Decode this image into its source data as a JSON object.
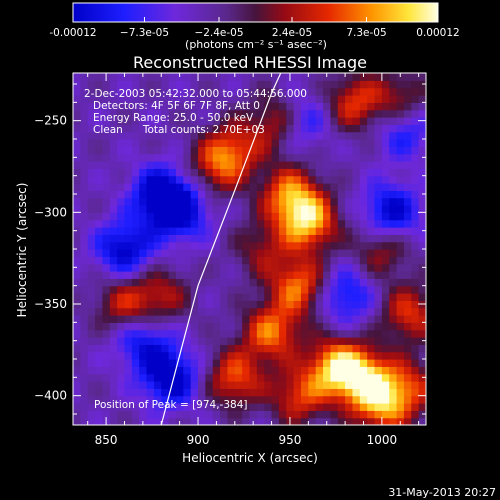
{
  "chart_data": {
    "type": "heatmap",
    "title": "Reconstructed RHESSI Image",
    "xlabel": "Heliocentric X (arcsec)",
    "ylabel": "Heliocentric Y (arcsec)",
    "xlim": [
      832,
      1024
    ],
    "ylim": [
      -416,
      -224
    ],
    "x_ticks": [
      850,
      900,
      950,
      1000
    ],
    "y_ticks": [
      -250,
      -300,
      -350,
      -400
    ],
    "colorbar": {
      "range": [
        -0.00012,
        0.00012
      ],
      "tick_values": [
        -0.00012,
        -7.3e-05,
        -2.4e-05,
        2.4e-05,
        7.3e-05,
        0.00012
      ],
      "tick_labels": [
        "-0.00012",
        "−7.3e-05",
        "−2.4e-05",
        "2.4e-05",
        "7.3e-05",
        "0.00012"
      ],
      "units_label": "(photons cm⁻² s⁻¹ asec⁻²)"
    },
    "annotations": {
      "time_range": "2-Dec-2003 05:42:32.000 to 05:44:56.000",
      "detectors": "Detectors: 4F 5F 6F 7F 8F, Att 0",
      "energy_range": "Energy Range: 25.0 - 50.0 keV",
      "method_counts": "Clean      Total counts: 2.70E+03",
      "peak": "Position of Peak = [974,-384]"
    },
    "limb_curve": [
      [
        880,
        -416
      ],
      [
        900,
        -340
      ],
      [
        920,
        -288
      ],
      [
        940,
        -235
      ],
      [
        945,
        -224
      ]
    ],
    "blobs": [
      {
        "x": 880,
        "y": -290,
        "v": -0.0001
      },
      {
        "x": 860,
        "y": -320,
        "v": -9e-05
      },
      {
        "x": 890,
        "y": -300,
        "v": -8e-05
      },
      {
        "x": 885,
        "y": -390,
        "v": -0.0001
      },
      {
        "x": 870,
        "y": -370,
        "v": -7e-05
      },
      {
        "x": 955,
        "y": -250,
        "v": -8e-05
      },
      {
        "x": 1005,
        "y": -300,
        "v": -9e-05
      },
      {
        "x": 980,
        "y": -345,
        "v": -7e-05
      },
      {
        "x": 1012,
        "y": -255,
        "v": -6e-05
      },
      {
        "x": 960,
        "y": -305,
        "v": 0.00012
      },
      {
        "x": 950,
        "y": -290,
        "v": 0.0001
      },
      {
        "x": 955,
        "y": -340,
        "v": 0.0001
      },
      {
        "x": 940,
        "y": -365,
        "v": 0.0001
      },
      {
        "x": 975,
        "y": -384,
        "v": 0.00012
      },
      {
        "x": 990,
        "y": -390,
        "v": 0.00011
      },
      {
        "x": 1000,
        "y": -405,
        "v": 0.0001
      },
      {
        "x": 945,
        "y": -250,
        "v": 9e-05
      },
      {
        "x": 920,
        "y": -265,
        "v": 7e-05
      },
      {
        "x": 910,
        "y": -275,
        "v": 7e-05
      },
      {
        "x": 985,
        "y": -240,
        "v": 8e-05
      },
      {
        "x": 1010,
        "y": -238,
        "v": 6e-05
      },
      {
        "x": 860,
        "y": -350,
        "v": 7e-05
      },
      {
        "x": 880,
        "y": -345,
        "v": 6e-05
      },
      {
        "x": 1015,
        "y": -355,
        "v": 8e-05
      },
      {
        "x": 1000,
        "y": -320,
        "v": 6e-05
      },
      {
        "x": 920,
        "y": -390,
        "v": 9e-05
      },
      {
        "x": 955,
        "y": -400,
        "v": 8e-05
      },
      {
        "x": 1015,
        "y": -395,
        "v": 7e-05
      },
      {
        "x": 935,
        "y": -320,
        "v": 5e-05
      }
    ],
    "grid": false,
    "legend": "colorbar-top"
  },
  "footer": {
    "date": "31-May-2013 20:27"
  }
}
